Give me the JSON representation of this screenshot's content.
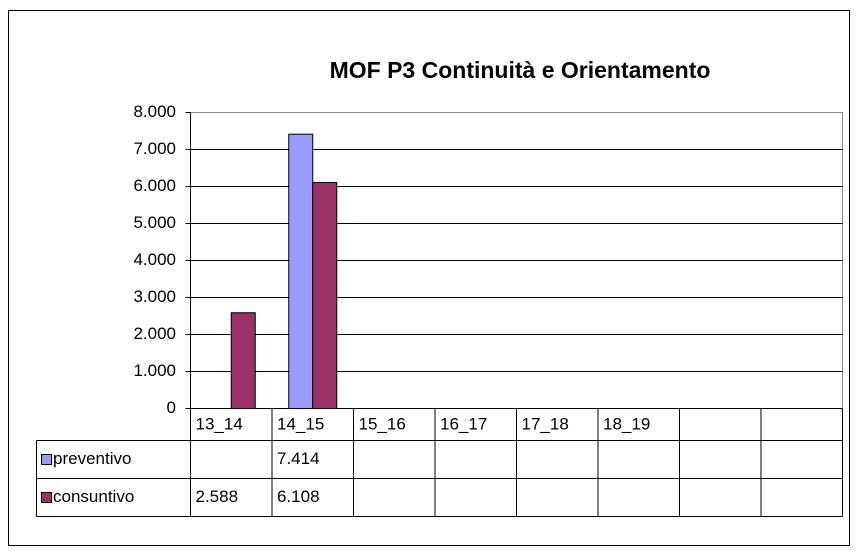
{
  "chart_data": {
    "type": "bar",
    "title": "MOF P3 Continuità e Orientamento",
    "categories": [
      "13_14",
      "14_15",
      "15_16",
      "16_17",
      "17_18",
      "18_19",
      null,
      null
    ],
    "series": [
      {
        "name": "preventivo",
        "color": "#9999ff",
        "values": [
          null,
          7414,
          null,
          null,
          null,
          null,
          null,
          null
        ],
        "value_labels": [
          null,
          "7.414",
          null,
          null,
          null,
          null,
          null,
          null
        ]
      },
      {
        "name": "consuntivo",
        "color": "#993366",
        "values": [
          2588,
          6108,
          null,
          null,
          null,
          null,
          null,
          null
        ],
        "value_labels": [
          "2.588",
          "6.108",
          null,
          null,
          null,
          null,
          null,
          null
        ]
      }
    ],
    "ylim": [
      0,
      8000
    ],
    "yticks": [
      0,
      {
        "value": 1000,
        "label": "1.000"
      },
      {
        "value": 2000,
        "label": "2.000"
      },
      {
        "value": 3000,
        "label": "3.000"
      },
      {
        "value": 4000,
        "label": "4.000"
      },
      {
        "value": 5000,
        "label": "5.000"
      },
      {
        "value": 6000,
        "label": "6.000"
      },
      {
        "value": 7000,
        "label": "7.000"
      },
      {
        "value": 8000,
        "label": "8.000"
      }
    ],
    "grid": true,
    "legend": "table"
  }
}
